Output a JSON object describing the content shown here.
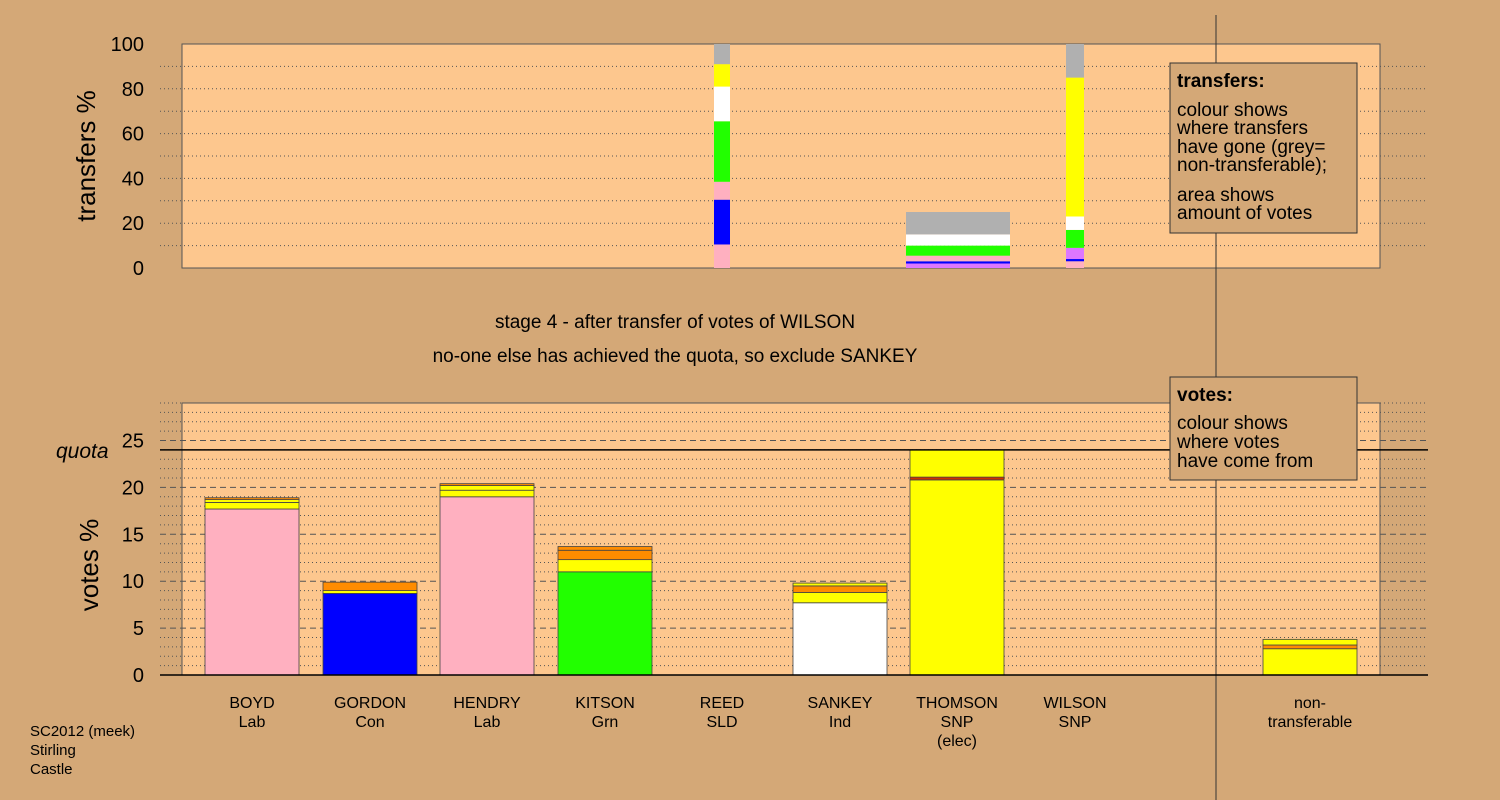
{
  "header": {
    "stage_line": "stage 4 - after transfer of votes of WILSON",
    "status_line": "no-one else has achieved the quota, so exclude SANKEY"
  },
  "footer": {
    "lines": [
      "SC2012 (meek)",
      "Stirling",
      "Castle"
    ]
  },
  "legend_transfers": {
    "title": "transfers:",
    "lines": [
      "colour shows",
      "where transfers",
      "have gone (grey=",
      "non-transferable);",
      "area shows",
      "amount of votes"
    ]
  },
  "legend_votes": {
    "title": "votes:",
    "lines": [
      "colour shows",
      "where votes",
      "have come from"
    ]
  },
  "colors": {
    "background": "#d4a877",
    "panel": "#fdc78e",
    "Lab": "#ffb0c0",
    "Con": "#0000ff",
    "Grn": "#22ff00",
    "Ind": "#ffffff",
    "SNP": "#ffff00",
    "transfer_orange": "#ff8c00",
    "transfer_red": "#cc3300",
    "nontransferable": "#b0b0b0",
    "purple": "#dd77ff"
  },
  "chart_data": [
    {
      "type": "bar",
      "title": "",
      "ylabel": "transfers %",
      "ylim": [
        0,
        100
      ],
      "yticks": [
        0,
        20,
        40,
        60,
        80,
        100
      ],
      "legend": "top-right",
      "columns": [
        {
          "candidate": "REED",
          "segments": [
            {
              "color": "#ffb0c0",
              "from": 0,
              "to": 10.5
            },
            {
              "color": "#0000ff",
              "from": 10.5,
              "to": 30.5
            },
            {
              "color": "#ffb0c0",
              "from": 30.5,
              "to": 38.5
            },
            {
              "color": "#22ff00",
              "from": 38.5,
              "to": 65.5
            },
            {
              "color": "#ffffff",
              "from": 65.5,
              "to": 81
            },
            {
              "color": "#ffff00",
              "from": 81,
              "to": 91
            },
            {
              "color": "#b0b0b0",
              "from": 91,
              "to": 100
            }
          ]
        },
        {
          "candidate": "SANKEY",
          "segments": [
            {
              "color": "#dd77ff",
              "from": 0,
              "to": 2
            },
            {
              "color": "#0000ff",
              "from": 2,
              "to": 3
            },
            {
              "color": "#ffb0c0",
              "from": 3,
              "to": 5.5
            },
            {
              "color": "#22ff00",
              "from": 5.5,
              "to": 10
            },
            {
              "color": "#ffffff",
              "from": 10,
              "to": 15
            },
            {
              "color": "#b0b0b0",
              "from": 15,
              "to": 25
            }
          ]
        },
        {
          "candidate": "WILSON",
          "segments": [
            {
              "color": "#ffb0c0",
              "from": 0,
              "to": 3
            },
            {
              "color": "#0000ff",
              "from": 3,
              "to": 4
            },
            {
              "color": "#dd77ff",
              "from": 4,
              "to": 9
            },
            {
              "color": "#22ff00",
              "from": 9,
              "to": 17
            },
            {
              "color": "#ffffff",
              "from": 17,
              "to": 23
            },
            {
              "color": "#ffff00",
              "from": 23,
              "to": 85
            },
            {
              "color": "#b0b0b0",
              "from": 85,
              "to": 100
            }
          ]
        }
      ]
    },
    {
      "type": "bar",
      "title": "",
      "ylabel": "votes %",
      "ylim": [
        0,
        29
      ],
      "yticks": [
        0,
        5,
        10,
        15,
        20,
        25
      ],
      "quota": 24,
      "quota_label": "quota",
      "legend": "top-right",
      "categories": [
        {
          "name": "BOYD",
          "party": "Lab",
          "extra": ""
        },
        {
          "name": "GORDON",
          "party": "Con",
          "extra": ""
        },
        {
          "name": "HENDRY",
          "party": "Lab",
          "extra": ""
        },
        {
          "name": "KITSON",
          "party": "Grn",
          "extra": ""
        },
        {
          "name": "REED",
          "party": "SLD",
          "extra": ""
        },
        {
          "name": "SANKEY",
          "party": "Ind",
          "extra": ""
        },
        {
          "name": "THOMSON",
          "party": "SNP",
          "extra": "(elec)"
        },
        {
          "name": "WILSON",
          "party": "SNP",
          "extra": ""
        },
        {
          "name": "non-",
          "party": "transferable",
          "extra": ""
        }
      ],
      "stacks": [
        [
          {
            "color": "#ffb0c0",
            "value": 17.7
          },
          {
            "color": "#ffff00",
            "value": 0.7
          },
          {
            "color": "#ffff00",
            "value": 0.3
          },
          {
            "color": "#ff8c00",
            "value": 0.2
          }
        ],
        [
          {
            "color": "#0000ff",
            "value": 8.7
          },
          {
            "color": "#ffff00",
            "value": 0.3
          },
          {
            "color": "#ff8c00",
            "value": 0.9
          }
        ],
        [
          {
            "color": "#ffb0c0",
            "value": 19.0
          },
          {
            "color": "#ffff00",
            "value": 0.7
          },
          {
            "color": "#ffff00",
            "value": 0.5
          },
          {
            "color": "#ff8c00",
            "value": 0.2
          }
        ],
        [
          {
            "color": "#22ff00",
            "value": 11.0
          },
          {
            "color": "#ffff00",
            "value": 1.3
          },
          {
            "color": "#ff8c00",
            "value": 1.0
          },
          {
            "color": "#ff8c00",
            "value": 0.4
          }
        ],
        [],
        [
          {
            "color": "#ffffff",
            "value": 7.7
          },
          {
            "color": "#ffff00",
            "value": 1.1
          },
          {
            "color": "#ff8c00",
            "value": 0.7
          },
          {
            "color": "#ffff00",
            "value": 0.3
          }
        ],
        [
          {
            "color": "#ffff00",
            "value": 20.8
          },
          {
            "color": "#cc3300",
            "value": 0.3
          },
          {
            "color": "#ffff00",
            "value": 2.9
          }
        ],
        [],
        [
          {
            "color": "#ffff00",
            "value": 2.8
          },
          {
            "color": "#ff8c00",
            "value": 0.4
          },
          {
            "color": "#ffff00",
            "value": 0.6
          }
        ]
      ]
    }
  ]
}
